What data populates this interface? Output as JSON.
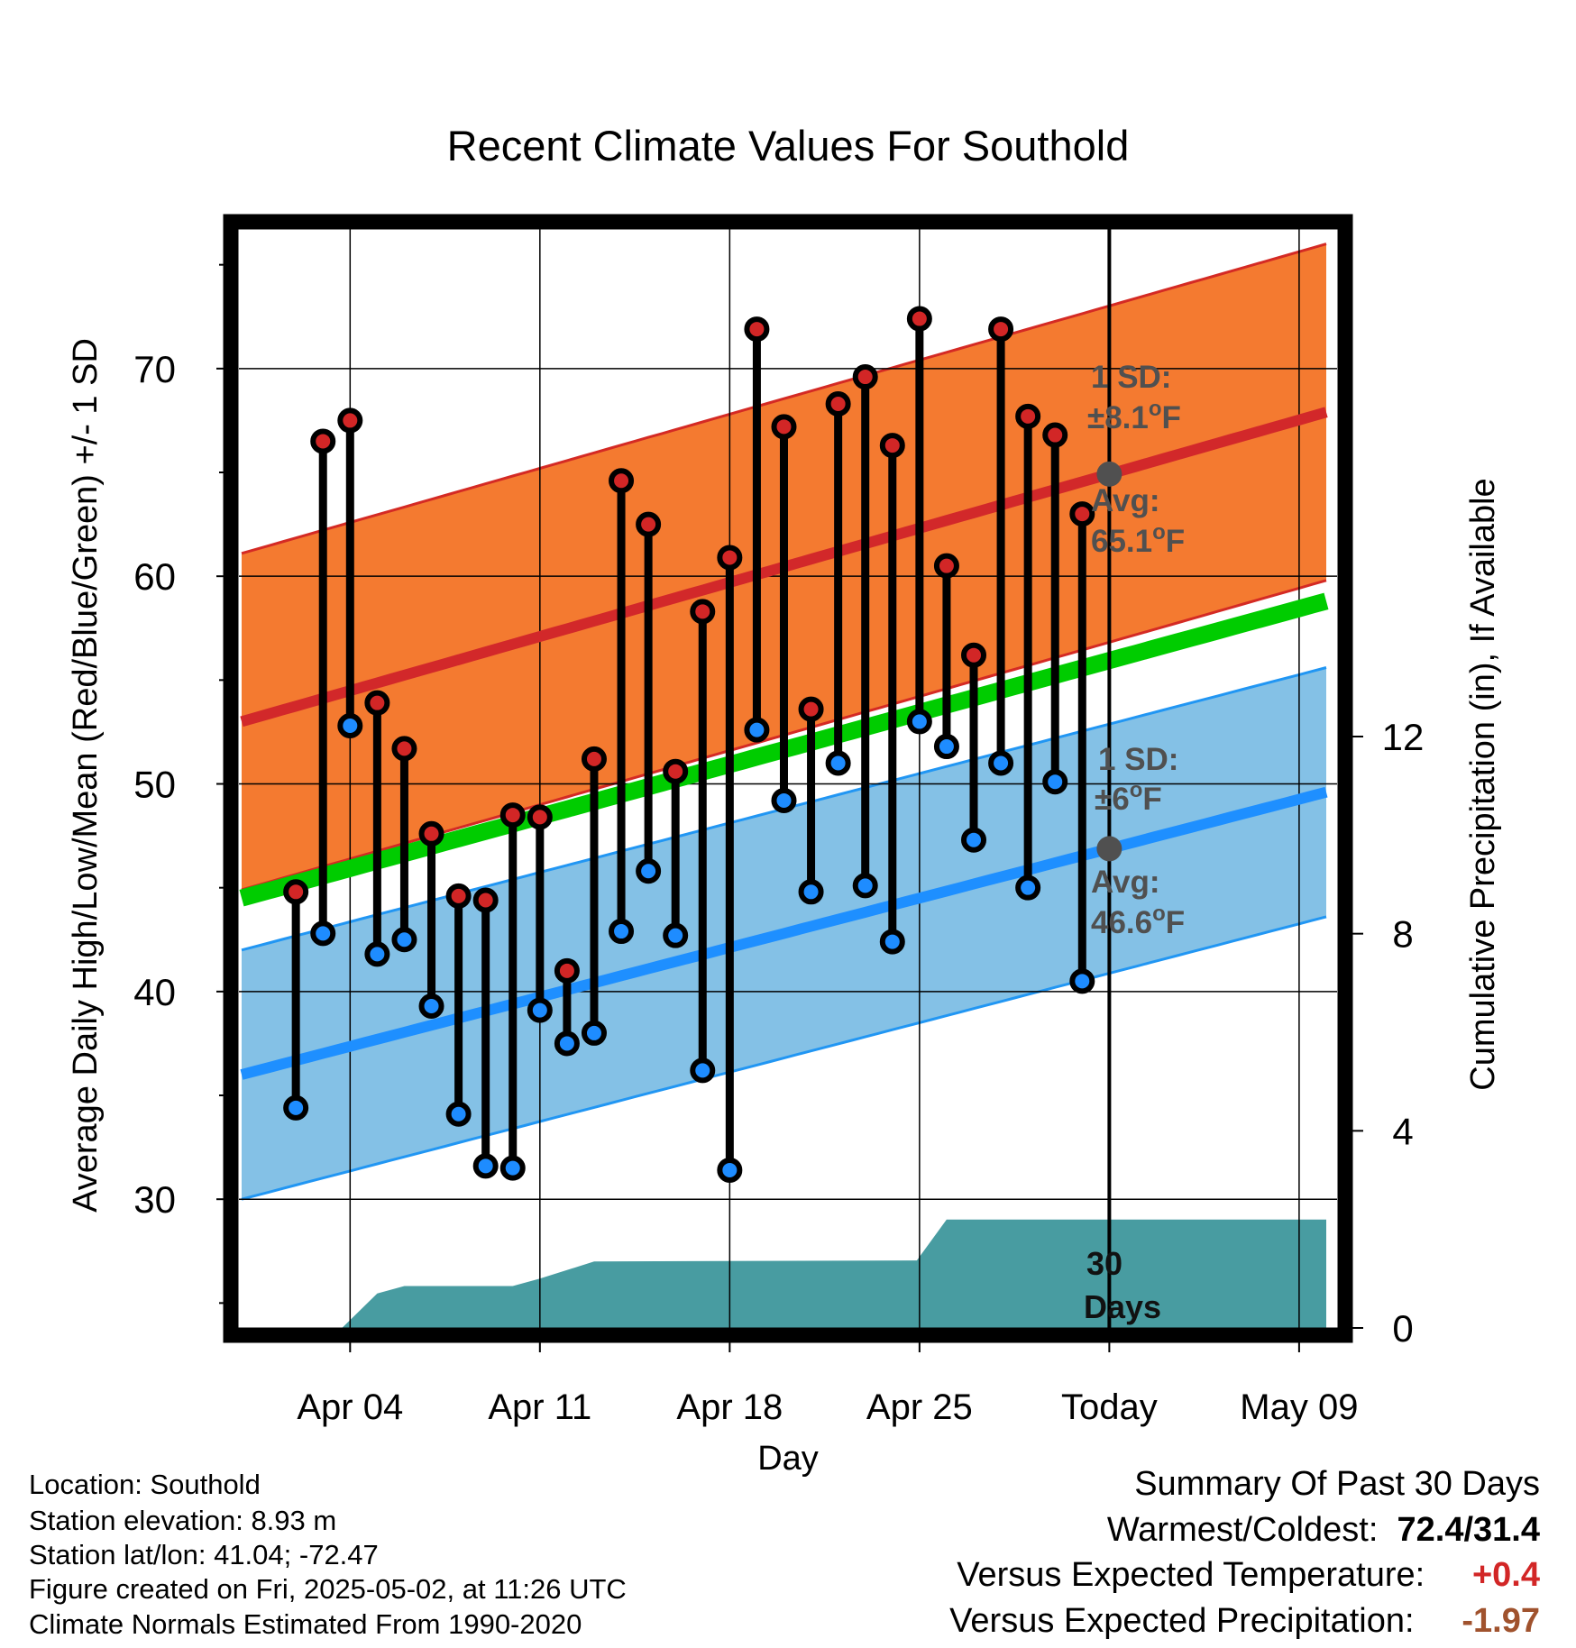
{
  "chart_data": {
    "type": "line",
    "title": "Recent Climate Values For Southold",
    "xlabel": "Day",
    "ylabel": "Average Daily High/Low/Mean (Red/Blue/Green) +/- 1 SD",
    "y2label": "Cumulative Precipitation (in), If Available",
    "ylim": [
      23.8,
      77.2
    ],
    "y2lim": [
      0,
      22.5
    ],
    "xlim": [
      -2.1,
      38.4
    ],
    "x_ticks": [
      {
        "day": 2,
        "label": "Apr 04"
      },
      {
        "day": 9,
        "label": "Apr 11"
      },
      {
        "day": 16,
        "label": "Apr 18"
      },
      {
        "day": 23,
        "label": "Apr 25"
      },
      {
        "day": 30,
        "label": "Today"
      },
      {
        "day": 37,
        "label": "May 09"
      }
    ],
    "y_ticks": [
      30,
      40,
      50,
      60,
      70
    ],
    "y2_ticks": [
      0,
      4,
      8,
      12
    ],
    "grid": true,
    "today_day": 30,
    "observed": {
      "highs": [
        44.8,
        66.5,
        67.5,
        53.9,
        51.7,
        47.6,
        44.6,
        44.4,
        48.5,
        48.4,
        41.0,
        51.2,
        64.6,
        62.5,
        50.6,
        58.3,
        60.9,
        71.9,
        67.2,
        53.6,
        68.3,
        69.6,
        66.3,
        72.4,
        60.5,
        56.2,
        71.9,
        67.7,
        66.8,
        63.0
      ],
      "lows": [
        34.4,
        42.8,
        52.8,
        41.8,
        42.5,
        39.3,
        34.1,
        31.6,
        31.5,
        39.1,
        37.5,
        38.0,
        42.9,
        45.8,
        42.7,
        36.2,
        31.4,
        52.6,
        49.2,
        44.8,
        51.0,
        45.1,
        42.4,
        53.0,
        51.8,
        47.3,
        51.0,
        45.0,
        50.1,
        40.5
      ]
    },
    "normals": {
      "days": [
        -2,
        38
      ],
      "avg_high": [
        53.0,
        67.9
      ],
      "avg_low": [
        36.0,
        49.6
      ],
      "avg_mean": [
        44.5,
        58.8
      ],
      "sd_high": 8.1,
      "sd_low": 6.0
    },
    "precipitation_cumulative": {
      "day": [
        -2,
        1.7,
        3,
        4,
        6,
        8,
        9,
        11,
        22.9,
        24,
        38
      ],
      "value": [
        0,
        0,
        0.7,
        0.85,
        0.85,
        0.85,
        1.0,
        1.35,
        1.37,
        2.2,
        2.2
      ]
    },
    "labels": {
      "high_sd": "1 SD:",
      "high_sd_val": "±8.1",
      "high_avg": "Avg:",
      "high_avg_val": "65.1",
      "low_sd": "1 SD:",
      "low_sd_val": "±6",
      "low_avg": "Avg:",
      "low_avg_val": "46.6",
      "deg_unit": "o",
      "f_unit": "F",
      "days_line1": "30",
      "days_line2": "Days"
    },
    "colors": {
      "high_band": "#f47a30",
      "high_edge": "#d42a24",
      "high_line": "#d2282a",
      "low_band": "#84c1e6",
      "low_edge": "#2196f3",
      "low_line": "#1e8fff",
      "mean_line": "#00cc00",
      "precip": "#489ca1",
      "annotation": "#505050",
      "obs_high_dot": "#d22626",
      "obs_low_dot": "#1e8cff"
    }
  },
  "info": {
    "location": "Location: Southold",
    "elevation": "Station elevation: 8.93 m",
    "latlon": "Station lat/lon: 41.04; -72.47",
    "created": "Figure created on Fri, 2025-05-02, at 11:26 UTC",
    "normals": "Climate Normals Estimated From 1990-2020"
  },
  "summary": {
    "title": "Summary Of Past 30 Days",
    "warm_cold_label": "Warmest/Coldest:",
    "warm_cold_value": "72.4/31.4",
    "temp_label": "Versus Expected Temperature:",
    "temp_value": "+0.4",
    "temp_color": "#d22626",
    "precip_label": "Versus Expected Precipitation:",
    "precip_value": "-1.97",
    "precip_color": "#a0522d"
  }
}
